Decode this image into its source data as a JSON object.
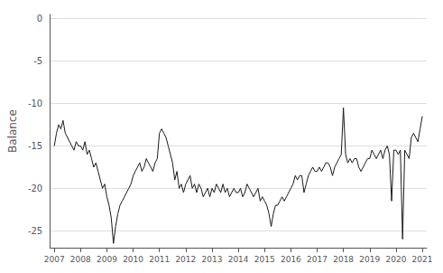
{
  "chart_data": {
    "type": "line",
    "ylabel": "Balance",
    "color": "#1a1a1a",
    "grid": true,
    "xlim": [
      2006.83,
      2021.17
    ],
    "ylim": [
      -27.0,
      0.5
    ],
    "xticks": [
      2007,
      2008,
      2009,
      2010,
      2011,
      2012,
      2013,
      2014,
      2015,
      2016,
      2017,
      2018,
      2019,
      2020,
      2021
    ],
    "yticks": [
      0,
      -5,
      -10,
      -15,
      -20,
      -25
    ],
    "x": [
      2007.0,
      2007.083,
      2007.167,
      2007.25,
      2007.333,
      2007.417,
      2007.5,
      2007.583,
      2007.667,
      2007.75,
      2007.833,
      2007.917,
      2008.0,
      2008.083,
      2008.167,
      2008.25,
      2008.333,
      2008.417,
      2008.5,
      2008.583,
      2008.667,
      2008.75,
      2008.833,
      2008.917,
      2009.0,
      2009.083,
      2009.167,
      2009.25,
      2009.333,
      2009.417,
      2009.5,
      2009.583,
      2009.667,
      2009.75,
      2009.833,
      2009.917,
      2010.0,
      2010.083,
      2010.167,
      2010.25,
      2010.333,
      2010.417,
      2010.5,
      2010.583,
      2010.667,
      2010.75,
      2010.833,
      2010.917,
      2011.0,
      2011.083,
      2011.167,
      2011.25,
      2011.333,
      2011.417,
      2011.5,
      2011.583,
      2011.667,
      2011.75,
      2011.833,
      2011.917,
      2012.0,
      2012.083,
      2012.167,
      2012.25,
      2012.333,
      2012.417,
      2012.5,
      2012.583,
      2012.667,
      2012.75,
      2012.833,
      2012.917,
      2013.0,
      2013.083,
      2013.167,
      2013.25,
      2013.333,
      2013.417,
      2013.5,
      2013.583,
      2013.667,
      2013.75,
      2013.833,
      2013.917,
      2014.0,
      2014.083,
      2014.167,
      2014.25,
      2014.333,
      2014.417,
      2014.5,
      2014.583,
      2014.667,
      2014.75,
      2014.833,
      2014.917,
      2015.0,
      2015.083,
      2015.167,
      2015.25,
      2015.333,
      2015.417,
      2015.5,
      2015.583,
      2015.667,
      2015.75,
      2015.833,
      2015.917,
      2016.0,
      2016.083,
      2016.167,
      2016.25,
      2016.333,
      2016.417,
      2016.5,
      2016.583,
      2016.667,
      2016.75,
      2016.833,
      2016.917,
      2017.0,
      2017.083,
      2017.167,
      2017.25,
      2017.333,
      2017.417,
      2017.5,
      2017.583,
      2017.667,
      2017.75,
      2017.833,
      2017.917,
      2018.0,
      2018.083,
      2018.167,
      2018.25,
      2018.333,
      2018.417,
      2018.5,
      2018.583,
      2018.667,
      2018.75,
      2018.833,
      2018.917,
      2019.0,
      2019.083,
      2019.167,
      2019.25,
      2019.333,
      2019.417,
      2019.5,
      2019.583,
      2019.667,
      2019.75,
      2019.833,
      2019.917,
      2020.0,
      2020.083,
      2020.167,
      2020.25,
      2020.333,
      2020.417,
      2020.5,
      2020.583,
      2020.667,
      2020.75,
      2020.833,
      2020.917,
      2021.0
    ],
    "values": [
      -15.0,
      -13.5,
      -12.5,
      -13.0,
      -12.0,
      -13.5,
      -14.0,
      -14.5,
      -15.0,
      -15.5,
      -14.5,
      -15.0,
      -15.0,
      -15.5,
      -14.5,
      -16.0,
      -15.5,
      -16.5,
      -17.5,
      -17.0,
      -18.0,
      -19.0,
      -20.0,
      -19.5,
      -21.0,
      -22.0,
      -23.5,
      -26.5,
      -24.5,
      -23.0,
      -22.0,
      -21.5,
      -21.0,
      -20.5,
      -20.0,
      -19.5,
      -18.5,
      -18.0,
      -17.5,
      -17.0,
      -18.0,
      -17.5,
      -16.5,
      -17.0,
      -17.5,
      -18.0,
      -17.0,
      -16.5,
      -13.5,
      -13.0,
      -13.5,
      -14.0,
      -15.0,
      -16.0,
      -17.0,
      -19.0,
      -18.0,
      -20.0,
      -19.5,
      -20.5,
      -19.5,
      -19.0,
      -18.5,
      -20.0,
      -19.5,
      -20.5,
      -19.5,
      -20.0,
      -21.0,
      -20.5,
      -20.0,
      -21.0,
      -20.0,
      -20.5,
      -19.5,
      -20.0,
      -20.5,
      -19.5,
      -20.5,
      -20.0,
      -21.0,
      -20.5,
      -20.0,
      -20.5,
      -20.5,
      -20.0,
      -21.0,
      -20.5,
      -19.5,
      -20.0,
      -20.5,
      -21.0,
      -20.5,
      -20.0,
      -21.5,
      -21.0,
      -21.5,
      -22.0,
      -23.0,
      -24.5,
      -23.0,
      -22.0,
      -22.0,
      -21.5,
      -21.0,
      -21.5,
      -21.0,
      -20.5,
      -20.0,
      -19.5,
      -18.5,
      -19.0,
      -18.5,
      -18.5,
      -20.5,
      -19.5,
      -18.5,
      -18.0,
      -17.5,
      -18.0,
      -18.0,
      -17.5,
      -18.0,
      -17.5,
      -17.0,
      -17.0,
      -17.5,
      -18.5,
      -17.5,
      -17.0,
      -16.5,
      -16.0,
      -10.5,
      -16.0,
      -17.0,
      -16.5,
      -17.0,
      -16.5,
      -16.5,
      -17.5,
      -18.0,
      -17.5,
      -17.0,
      -16.5,
      -16.5,
      -15.5,
      -16.0,
      -16.5,
      -16.0,
      -15.5,
      -16.5,
      -15.5,
      -15.0,
      -16.0,
      -21.5,
      -15.5,
      -15.5,
      -16.0,
      -15.5,
      -26.0,
      -15.5,
      -16.0,
      -16.5,
      -14.0,
      -13.5,
      -14.0,
      -14.5,
      -13.0,
      -11.5
    ]
  }
}
